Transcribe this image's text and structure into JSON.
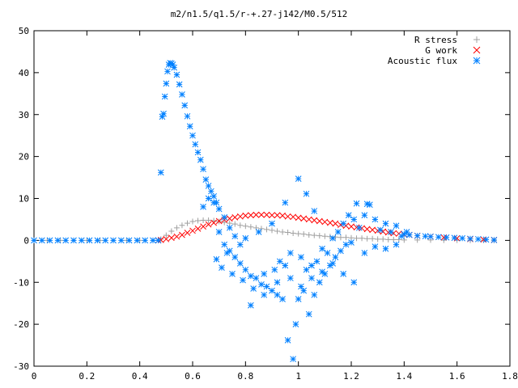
{
  "chart_data": {
    "type": "scatter",
    "title": "m2/n1.5/q1.5/r-+.27-j142/M0.5/512",
    "xlabel": "",
    "ylabel": "",
    "xlim": [
      0,
      1.8
    ],
    "ylim": [
      -30,
      50
    ],
    "x_ticks": [
      "0",
      "0.2",
      "0.4",
      "0.6",
      "0.8",
      "1",
      "1.2",
      "1.4",
      "1.6",
      "1.8"
    ],
    "y_ticks": [
      "50",
      "40",
      "30",
      "20",
      "10",
      "0",
      "-10",
      "-20",
      "-30"
    ],
    "x_tick_values": [
      0,
      0.2,
      0.4,
      0.6,
      0.8,
      1.0,
      1.2,
      1.4,
      1.6,
      1.8
    ],
    "y_tick_values": [
      50,
      40,
      30,
      20,
      10,
      0,
      -10,
      -20,
      -30
    ],
    "grid": false,
    "legend_position": "top-right",
    "series": [
      {
        "name": "R stress",
        "marker": "plus",
        "color": "#a0a0a0",
        "points": [
          [
            0,
            0
          ],
          [
            0.05,
            0
          ],
          [
            0.1,
            0
          ],
          [
            0.15,
            0
          ],
          [
            0.2,
            0
          ],
          [
            0.25,
            0
          ],
          [
            0.3,
            0
          ],
          [
            0.35,
            0
          ],
          [
            0.4,
            0
          ],
          [
            0.45,
            0
          ],
          [
            0.47,
            0
          ],
          [
            0.48,
            0.3
          ],
          [
            0.5,
            1.2
          ],
          [
            0.52,
            2.2
          ],
          [
            0.54,
            3.0
          ],
          [
            0.56,
            3.6
          ],
          [
            0.58,
            4.1
          ],
          [
            0.6,
            4.5
          ],
          [
            0.62,
            4.7
          ],
          [
            0.64,
            4.8
          ],
          [
            0.66,
            4.8
          ],
          [
            0.68,
            4.7
          ],
          [
            0.7,
            4.5
          ],
          [
            0.72,
            4.3
          ],
          [
            0.74,
            4.1
          ],
          [
            0.76,
            3.9
          ],
          [
            0.78,
            3.6
          ],
          [
            0.8,
            3.4
          ],
          [
            0.82,
            3.2
          ],
          [
            0.84,
            3.0
          ],
          [
            0.86,
            2.8
          ],
          [
            0.88,
            2.6
          ],
          [
            0.9,
            2.4
          ],
          [
            0.92,
            2.2
          ],
          [
            0.94,
            2.0
          ],
          [
            0.96,
            1.9
          ],
          [
            0.98,
            1.7
          ],
          [
            1.0,
            1.6
          ],
          [
            1.02,
            1.5
          ],
          [
            1.04,
            1.3
          ],
          [
            1.06,
            1.2
          ],
          [
            1.08,
            1.1
          ],
          [
            1.1,
            1.0
          ],
          [
            1.12,
            0.9
          ],
          [
            1.14,
            0.8
          ],
          [
            1.16,
            0.7
          ],
          [
            1.18,
            0.7
          ],
          [
            1.2,
            0.6
          ],
          [
            1.22,
            0.5
          ],
          [
            1.24,
            0.5
          ],
          [
            1.26,
            0.4
          ],
          [
            1.28,
            0.4
          ],
          [
            1.3,
            0.3
          ],
          [
            1.32,
            0.3
          ],
          [
            1.34,
            0.2
          ],
          [
            1.36,
            0.2
          ],
          [
            1.38,
            0.2
          ],
          [
            1.4,
            0.1
          ],
          [
            1.45,
            0.1
          ],
          [
            1.5,
            0.1
          ],
          [
            1.55,
            0.05
          ],
          [
            1.6,
            0.05
          ],
          [
            1.65,
            0.03
          ],
          [
            1.7,
            0.02
          ],
          [
            1.74,
            0
          ]
        ]
      },
      {
        "name": "G work",
        "marker": "cross",
        "color": "#ff0000",
        "points": [
          [
            0.47,
            0
          ],
          [
            0.48,
            0.1
          ],
          [
            0.5,
            0.3
          ],
          [
            0.52,
            0.6
          ],
          [
            0.54,
            0.9
          ],
          [
            0.56,
            1.3
          ],
          [
            0.58,
            1.8
          ],
          [
            0.6,
            2.3
          ],
          [
            0.62,
            2.8
          ],
          [
            0.64,
            3.3
          ],
          [
            0.66,
            3.8
          ],
          [
            0.68,
            4.2
          ],
          [
            0.7,
            4.6
          ],
          [
            0.72,
            4.9
          ],
          [
            0.74,
            5.2
          ],
          [
            0.76,
            5.5
          ],
          [
            0.78,
            5.7
          ],
          [
            0.8,
            5.9
          ],
          [
            0.82,
            6.0
          ],
          [
            0.84,
            6.1
          ],
          [
            0.86,
            6.1
          ],
          [
            0.88,
            6.1
          ],
          [
            0.9,
            6.0
          ],
          [
            0.92,
            6.0
          ],
          [
            0.94,
            5.9
          ],
          [
            0.96,
            5.7
          ],
          [
            0.98,
            5.6
          ],
          [
            1.0,
            5.4
          ],
          [
            1.02,
            5.2
          ],
          [
            1.04,
            5.0
          ],
          [
            1.06,
            4.8
          ],
          [
            1.08,
            4.6
          ],
          [
            1.1,
            4.4
          ],
          [
            1.12,
            4.2
          ],
          [
            1.14,
            4.0
          ],
          [
            1.16,
            3.7
          ],
          [
            1.18,
            3.5
          ],
          [
            1.2,
            3.3
          ],
          [
            1.22,
            3.1
          ],
          [
            1.24,
            2.9
          ],
          [
            1.26,
            2.7
          ],
          [
            1.28,
            2.5
          ],
          [
            1.3,
            2.3
          ],
          [
            1.32,
            2.1
          ],
          [
            1.34,
            1.9
          ],
          [
            1.36,
            1.7
          ],
          [
            1.38,
            1.6
          ],
          [
            1.4,
            1.4
          ],
          [
            1.42,
            1.3
          ],
          [
            1.45,
            1.1
          ],
          [
            1.5,
            0.9
          ],
          [
            1.55,
            0.7
          ],
          [
            1.6,
            0.5
          ],
          [
            1.65,
            0.3
          ],
          [
            1.7,
            0.2
          ],
          [
            1.74,
            0.1
          ]
        ]
      },
      {
        "name": "Acoustic flux",
        "marker": "star",
        "color": "#0080ff",
        "points": [
          [
            0,
            0
          ],
          [
            0.03,
            0
          ],
          [
            0.06,
            0
          ],
          [
            0.09,
            0
          ],
          [
            0.12,
            0
          ],
          [
            0.15,
            0
          ],
          [
            0.18,
            0
          ],
          [
            0.21,
            0
          ],
          [
            0.24,
            0
          ],
          [
            0.27,
            0
          ],
          [
            0.3,
            0
          ],
          [
            0.33,
            0
          ],
          [
            0.36,
            0
          ],
          [
            0.39,
            0
          ],
          [
            0.42,
            0
          ],
          [
            0.45,
            0
          ],
          [
            0.47,
            0
          ],
          [
            0.48,
            16.2
          ],
          [
            0.485,
            29.5
          ],
          [
            0.49,
            30.2
          ],
          [
            0.495,
            34.3
          ],
          [
            0.5,
            37.4
          ],
          [
            0.505,
            40.3
          ],
          [
            0.51,
            41.9
          ],
          [
            0.515,
            42.3
          ],
          [
            0.52,
            42.2
          ],
          [
            0.525,
            41.9
          ],
          [
            0.53,
            41.2
          ],
          [
            0.54,
            39.5
          ],
          [
            0.55,
            37.2
          ],
          [
            0.56,
            34.8
          ],
          [
            0.57,
            32.2
          ],
          [
            0.58,
            29.6
          ],
          [
            0.59,
            27.2
          ],
          [
            0.6,
            25.0
          ],
          [
            0.61,
            22.9
          ],
          [
            0.62,
            21.0
          ],
          [
            0.63,
            19.2
          ],
          [
            0.64,
            17.0
          ],
          [
            0.65,
            14.5
          ],
          [
            0.66,
            13.0
          ],
          [
            0.67,
            11.7
          ],
          [
            0.68,
            10.5
          ],
          [
            0.69,
            9.0
          ],
          [
            0.7,
            7.5
          ],
          [
            0.72,
            5.5
          ],
          [
            0.74,
            3.0
          ],
          [
            0.66,
            10.0
          ],
          [
            0.68,
            9.0
          ],
          [
            0.64,
            8.0
          ],
          [
            0.7,
            2.0
          ],
          [
            0.72,
            -1.0
          ],
          [
            0.74,
            -2.5
          ],
          [
            0.76,
            -4.0
          ],
          [
            0.78,
            -5.5
          ],
          [
            0.8,
            -7.0
          ],
          [
            0.82,
            -8.5
          ],
          [
            0.84,
            -9.0
          ],
          [
            0.86,
            -10.5
          ],
          [
            0.88,
            -11.0
          ],
          [
            0.9,
            -12.0
          ],
          [
            0.92,
            -13.0
          ],
          [
            0.94,
            -14.0
          ],
          [
            0.96,
            -23.8
          ],
          [
            0.98,
            -28.3
          ],
          [
            0.99,
            -20.0
          ],
          [
            1.0,
            -14.0
          ],
          [
            1.02,
            -12.0
          ],
          [
            1.04,
            -17.6
          ],
          [
            1.06,
            -13.0
          ],
          [
            1.08,
            -10.0
          ],
          [
            1.1,
            -8.0
          ],
          [
            1.12,
            -6.0
          ],
          [
            1.14,
            -4.0
          ],
          [
            1.16,
            -2.5
          ],
          [
            1.18,
            -1.0
          ],
          [
            1.2,
            -0.5
          ],
          [
            0.82,
            -15.5
          ],
          [
            0.87,
            -13.0
          ],
          [
            0.92,
            -10.0
          ],
          [
            0.95,
            -6.0
          ],
          [
            0.97,
            -3.0
          ],
          [
            1.01,
            -4.0
          ],
          [
            1.03,
            -7.0
          ],
          [
            1.05,
            -9.0
          ],
          [
            1.07,
            -5.0
          ],
          [
            1.09,
            -2.0
          ],
          [
            1.11,
            -3.0
          ],
          [
            1.13,
            0.5
          ],
          [
            1.15,
            2.0
          ],
          [
            1.17,
            4.0
          ],
          [
            1.19,
            6.0
          ],
          [
            1.21,
            5.0
          ],
          [
            1.23,
            3.0
          ],
          [
            1.25,
            6.0
          ],
          [
            1.27,
            8.5
          ],
          [
            1.29,
            5.0
          ],
          [
            1.31,
            2.5
          ],
          [
            1.33,
            4.0
          ],
          [
            1.35,
            2.0
          ],
          [
            1.37,
            3.5
          ],
          [
            1.39,
            1.0
          ],
          [
            1.41,
            2.0
          ],
          [
            1.0,
            14.7
          ],
          [
            1.03,
            11.1
          ],
          [
            1.06,
            7.0
          ],
          [
            1.22,
            8.8
          ],
          [
            1.26,
            8.7
          ],
          [
            0.95,
            9.0
          ],
          [
            0.9,
            4.0
          ],
          [
            0.85,
            2.0
          ],
          [
            0.8,
            0.5
          ],
          [
            0.78,
            -1.0
          ],
          [
            0.76,
            1.0
          ],
          [
            0.73,
            -3.0
          ],
          [
            0.69,
            -4.5
          ],
          [
            0.71,
            -6.5
          ],
          [
            0.75,
            -8.0
          ],
          [
            0.79,
            -9.5
          ],
          [
            0.83,
            -11.5
          ],
          [
            0.87,
            -8.0
          ],
          [
            0.91,
            -7.0
          ],
          [
            0.93,
            -5.0
          ],
          [
            0.97,
            -9.0
          ],
          [
            1.01,
            -11.0
          ],
          [
            1.05,
            -6.0
          ],
          [
            1.09,
            -7.5
          ],
          [
            1.13,
            -5.5
          ],
          [
            1.17,
            -8.0
          ],
          [
            1.21,
            -10.0
          ],
          [
            1.25,
            -3.0
          ],
          [
            1.29,
            -1.5
          ],
          [
            1.33,
            -2.0
          ],
          [
            1.37,
            -1.0
          ],
          [
            1.4,
            1.5
          ],
          [
            1.42,
            1.3
          ],
          [
            1.45,
            1.1
          ],
          [
            1.48,
            1.0
          ],
          [
            1.5,
            0.9
          ],
          [
            1.53,
            0.8
          ],
          [
            1.56,
            0.7
          ],
          [
            1.59,
            0.6
          ],
          [
            1.62,
            0.5
          ],
          [
            1.65,
            0.4
          ],
          [
            1.68,
            0.3
          ],
          [
            1.71,
            0.2
          ],
          [
            1.74,
            0.1
          ]
        ]
      }
    ]
  }
}
